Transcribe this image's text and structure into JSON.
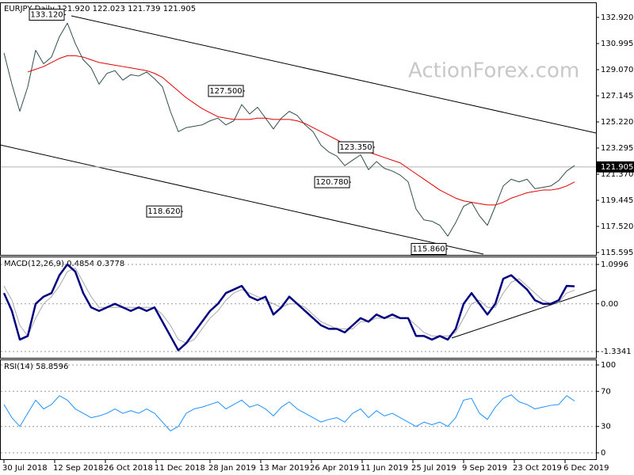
{
  "chart_data": [
    {
      "type": "line",
      "title": "EURJPY,Daily  121.920 122.023 121.739 121.905",
      "watermark": "ActionForex.com",
      "x": [
        "2018-07-30",
        "2018-08-06",
        "2018-08-13",
        "2018-08-20",
        "2018-08-27",
        "2018-09-03",
        "2018-09-10",
        "2018-09-17",
        "2018-09-24",
        "2018-10-01",
        "2018-10-08",
        "2018-10-15",
        "2018-10-22",
        "2018-10-29",
        "2018-11-05",
        "2018-11-12",
        "2018-11-19",
        "2018-11-26",
        "2018-12-03",
        "2018-12-10",
        "2018-12-17",
        "2018-12-24",
        "2018-12-31",
        "2019-01-07",
        "2019-01-14",
        "2019-01-21",
        "2019-01-28",
        "2019-02-04",
        "2019-02-11",
        "2019-02-18",
        "2019-02-25",
        "2019-03-04",
        "2019-03-11",
        "2019-03-18",
        "2019-03-25",
        "2019-04-01",
        "2019-04-08",
        "2019-04-15",
        "2019-04-22",
        "2019-04-29",
        "2019-05-06",
        "2019-05-13",
        "2019-05-20",
        "2019-05-27",
        "2019-06-03",
        "2019-06-10",
        "2019-06-17",
        "2019-06-24",
        "2019-07-01",
        "2019-07-08",
        "2019-07-15",
        "2019-07-22",
        "2019-07-29",
        "2019-08-05",
        "2019-08-12",
        "2019-08-19",
        "2019-08-26",
        "2019-09-02",
        "2019-09-09",
        "2019-09-16",
        "2019-09-23",
        "2019-09-30",
        "2019-10-07",
        "2019-10-14",
        "2019-10-21",
        "2019-10-28",
        "2019-11-04",
        "2019-11-11",
        "2019-11-18",
        "2019-11-25",
        "2019-12-02",
        "2019-12-09",
        "2019-12-16"
      ],
      "series": [
        {
          "color": "#2f4f4f",
          "values": [
            130.3,
            128.0,
            126.0,
            127.8,
            130.5,
            129.5,
            130.0,
            131.5,
            132.5,
            131.0,
            129.8,
            129.2,
            128.0,
            128.8,
            129.0,
            128.3,
            128.7,
            128.6,
            128.9,
            128.4,
            127.8,
            126.0,
            124.5,
            124.8,
            124.9,
            125.0,
            125.3,
            125.5,
            125.0,
            125.3,
            126.5,
            125.8,
            126.3,
            125.5,
            124.7,
            125.5,
            126.0,
            125.7,
            125.0,
            124.5,
            123.5,
            123.0,
            122.7,
            122.0,
            122.4,
            122.8,
            121.7,
            122.3,
            121.8,
            121.6,
            121.3,
            120.8,
            118.8,
            118.0,
            117.9,
            117.6,
            116.8,
            117.8,
            119.0,
            119.3,
            118.3,
            117.6,
            119.0,
            120.5,
            121.0,
            120.8,
            121.0,
            120.3,
            120.4,
            120.5,
            120.9,
            121.6,
            122.0
          ]
        },
        {
          "color": "#e00000",
          "values": [
            null,
            null,
            null,
            128.9,
            129.1,
            129.3,
            129.6,
            129.9,
            130.1,
            130.1,
            130.0,
            129.8,
            129.6,
            129.5,
            129.4,
            129.3,
            129.2,
            129.1,
            129.0,
            128.8,
            128.5,
            128.0,
            127.5,
            127.0,
            126.6,
            126.2,
            125.9,
            125.6,
            125.5,
            125.4,
            125.4,
            125.4,
            125.5,
            125.5,
            125.4,
            125.4,
            125.4,
            125.3,
            125.1,
            124.8,
            124.5,
            124.2,
            123.9,
            123.6,
            123.4,
            123.2,
            123.0,
            122.8,
            122.6,
            122.4,
            122.2,
            121.8,
            121.4,
            121.0,
            120.6,
            120.2,
            119.9,
            119.6,
            119.4,
            119.3,
            119.2,
            119.1,
            119.1,
            119.3,
            119.6,
            119.8,
            120.0,
            120.1,
            120.2,
            120.2,
            120.3,
            120.5,
            120.8
          ]
        }
      ],
      "ylim": [
        115.42,
        133.97
      ],
      "yticks": [
        {
          "value": 115.595,
          "label": "115.595"
        },
        {
          "value": 117.52,
          "label": "117.520"
        },
        {
          "value": 119.445,
          "label": "119.445"
        },
        {
          "value": 121.37,
          "label": "121.370"
        },
        {
          "value": 123.295,
          "label": "123.295"
        },
        {
          "value": 125.22,
          "label": "125.220"
        },
        {
          "value": 127.145,
          "label": "127.145"
        },
        {
          "value": 129.07,
          "label": "129.070"
        },
        {
          "value": 130.995,
          "label": "130.995"
        },
        {
          "value": 132.92,
          "label": "132.920"
        }
      ],
      "last": {
        "value": 121.905,
        "label": "121.905"
      },
      "annotations": [
        {
          "x": "2018-09-21",
          "value": 133.12,
          "label": "133.120"
        },
        {
          "x": "2019-02-27",
          "value": 127.5,
          "label": "127.500"
        },
        {
          "x": "2019-06-21",
          "value": 123.35,
          "label": "123.350"
        },
        {
          "x": "2019-05-31",
          "value": 120.78,
          "label": "120.780"
        },
        {
          "x": "2019-01-03",
          "value": 118.62,
          "label": "118.620"
        },
        {
          "x": "2019-08-26",
          "value": 115.86,
          "label": "115.860"
        }
      ]
    },
    {
      "type": "line",
      "title": "MACD(12,26,9) 0.4854 0.3778",
      "grid": true,
      "x": [
        "2018-07-30",
        "2018-08-06",
        "2018-08-13",
        "2018-08-20",
        "2018-08-27",
        "2018-09-03",
        "2018-09-10",
        "2018-09-17",
        "2018-09-24",
        "2018-10-01",
        "2018-10-08",
        "2018-10-15",
        "2018-10-22",
        "2018-10-29",
        "2018-11-05",
        "2018-11-12",
        "2018-11-19",
        "2018-11-26",
        "2018-12-03",
        "2018-12-10",
        "2018-12-17",
        "2018-12-24",
        "2018-12-31",
        "2019-01-07",
        "2019-01-14",
        "2019-01-21",
        "2019-01-28",
        "2019-02-04",
        "2019-02-11",
        "2019-02-18",
        "2019-02-25",
        "2019-03-04",
        "2019-03-11",
        "2019-03-18",
        "2019-03-25",
        "2019-04-01",
        "2019-04-08",
        "2019-04-15",
        "2019-04-22",
        "2019-04-29",
        "2019-05-06",
        "2019-05-13",
        "2019-05-20",
        "2019-05-27",
        "2019-06-03",
        "2019-06-10",
        "2019-06-17",
        "2019-06-24",
        "2019-07-01",
        "2019-07-08",
        "2019-07-15",
        "2019-07-22",
        "2019-07-29",
        "2019-08-05",
        "2019-08-12",
        "2019-08-19",
        "2019-08-26",
        "2019-09-02",
        "2019-09-09",
        "2019-09-16",
        "2019-09-23",
        "2019-09-30",
        "2019-10-07",
        "2019-10-14",
        "2019-10-21",
        "2019-10-28",
        "2019-11-04",
        "2019-11-11",
        "2019-11-18",
        "2019-11-25",
        "2019-12-02",
        "2019-12-09",
        "2019-12-16"
      ],
      "series": [
        {
          "color": "#a9a9a9",
          "values": [
            0.5,
            0.1,
            -0.6,
            -0.9,
            -0.4,
            0.0,
            0.2,
            0.5,
            0.9,
            1.0,
            0.6,
            0.2,
            -0.1,
            -0.1,
            -0.1,
            -0.1,
            -0.1,
            -0.1,
            -0.1,
            -0.1,
            -0.3,
            -0.6,
            -1.0,
            -1.1,
            -1.0,
            -0.7,
            -0.4,
            -0.2,
            0.1,
            0.3,
            0.4,
            0.3,
            0.2,
            0.1,
            0.0,
            -0.1,
            0.0,
            0.0,
            -0.1,
            -0.3,
            -0.5,
            -0.6,
            -0.7,
            -0.7,
            -0.7,
            -0.5,
            -0.5,
            -0.4,
            -0.4,
            -0.4,
            -0.4,
            -0.4,
            -0.6,
            -0.8,
            -0.9,
            -0.9,
            -0.9,
            -0.8,
            -0.4,
            0.0,
            0.1,
            -0.1,
            -0.1,
            0.3,
            0.6,
            0.7,
            0.5,
            0.3,
            0.1,
            0.0,
            0.05,
            0.3,
            0.38
          ]
        },
        {
          "color": "#000080",
          "values": [
            0.3,
            -0.2,
            -1.0,
            -0.9,
            0.0,
            0.2,
            0.3,
            0.8,
            1.1,
            0.9,
            0.3,
            -0.1,
            -0.2,
            -0.1,
            0.0,
            -0.1,
            -0.2,
            -0.1,
            -0.2,
            -0.1,
            -0.5,
            -0.9,
            -1.3,
            -1.1,
            -0.8,
            -0.5,
            -0.2,
            0.0,
            0.3,
            0.4,
            0.5,
            0.2,
            0.1,
            0.2,
            -0.3,
            -0.1,
            0.2,
            0.0,
            -0.2,
            -0.4,
            -0.6,
            -0.7,
            -0.7,
            -0.8,
            -0.6,
            -0.4,
            -0.5,
            -0.3,
            -0.4,
            -0.3,
            -0.4,
            -0.4,
            -0.9,
            -0.9,
            -1.0,
            -0.9,
            -1.0,
            -0.7,
            0.0,
            0.3,
            0.0,
            -0.3,
            0.0,
            0.7,
            0.8,
            0.6,
            0.4,
            0.1,
            0.0,
            0.0,
            0.1,
            0.5,
            0.49
          ]
        }
      ],
      "ylim": [
        -1.51,
        1.3
      ],
      "yticks": [
        -1.3341,
        {
          "value": 0,
          "label": "0.00"
        },
        1.0996
      ]
    },
    {
      "type": "line",
      "title": "RSI(14) 58.8596",
      "grid": true,
      "x": [
        "2018-07-30",
        "2018-08-06",
        "2018-08-13",
        "2018-08-20",
        "2018-08-27",
        "2018-09-03",
        "2018-09-10",
        "2018-09-17",
        "2018-09-24",
        "2018-10-01",
        "2018-10-08",
        "2018-10-15",
        "2018-10-22",
        "2018-10-29",
        "2018-11-05",
        "2018-11-12",
        "2018-11-19",
        "2018-11-26",
        "2018-12-03",
        "2018-12-10",
        "2018-12-17",
        "2018-12-24",
        "2018-12-31",
        "2019-01-07",
        "2019-01-14",
        "2019-01-21",
        "2019-01-28",
        "2019-02-04",
        "2019-02-11",
        "2019-02-18",
        "2019-02-25",
        "2019-03-04",
        "2019-03-11",
        "2019-03-18",
        "2019-03-25",
        "2019-04-01",
        "2019-04-08",
        "2019-04-15",
        "2019-04-22",
        "2019-04-29",
        "2019-05-06",
        "2019-05-13",
        "2019-05-20",
        "2019-05-27",
        "2019-06-03",
        "2019-06-10",
        "2019-06-17",
        "2019-06-24",
        "2019-07-01",
        "2019-07-08",
        "2019-07-15",
        "2019-07-22",
        "2019-07-29",
        "2019-08-05",
        "2019-08-12",
        "2019-08-19",
        "2019-08-26",
        "2019-09-02",
        "2019-09-09",
        "2019-09-16",
        "2019-09-23",
        "2019-09-30",
        "2019-10-07",
        "2019-10-14",
        "2019-10-21",
        "2019-10-28",
        "2019-11-04",
        "2019-11-11",
        "2019-11-18",
        "2019-11-25",
        "2019-12-02",
        "2019-12-09",
        "2019-12-16"
      ],
      "series": [
        {
          "color": "#1e90ff",
          "values": [
            55,
            40,
            30,
            45,
            60,
            50,
            55,
            65,
            60,
            50,
            45,
            40,
            42,
            45,
            50,
            45,
            48,
            45,
            50,
            45,
            35,
            25,
            30,
            45,
            50,
            52,
            55,
            58,
            50,
            55,
            60,
            52,
            55,
            50,
            42,
            52,
            58,
            50,
            45,
            40,
            35,
            38,
            40,
            35,
            45,
            50,
            40,
            48,
            42,
            45,
            40,
            35,
            30,
            35,
            32,
            35,
            30,
            40,
            60,
            62,
            45,
            38,
            52,
            62,
            66,
            58,
            55,
            50,
            52,
            54,
            55,
            65,
            59
          ]
        }
      ],
      "ylim": [
        -7.2,
        105.4
      ],
      "yticks": [
        0,
        30,
        70,
        100
      ],
      "xticks": [
        {
          "value": "2018-07-30",
          "label": "30 Jul 2018"
        },
        {
          "value": "2018-09-12",
          "label": "12 Sep 2018"
        },
        {
          "value": "2018-10-26",
          "label": "26 Oct 2018"
        },
        {
          "value": "2018-12-11",
          "label": "11 Dec 2018"
        },
        {
          "value": "2019-01-28",
          "label": "28 Jan 2019"
        },
        {
          "value": "2019-03-13",
          "label": "13 Mar 2019"
        },
        {
          "value": "2019-04-26",
          "label": "26 Apr 2019"
        },
        {
          "value": "2019-06-11",
          "label": "11 Jun 2019"
        },
        {
          "value": "2019-07-25",
          "label": "25 Jul 2019"
        },
        {
          "value": "2019-09-09",
          "label": "9 Sep 2019"
        },
        {
          "value": "2019-10-23",
          "label": "23 Oct 2019"
        },
        {
          "value": "2019-12-06",
          "label": "6 Dec 2019"
        }
      ]
    }
  ]
}
